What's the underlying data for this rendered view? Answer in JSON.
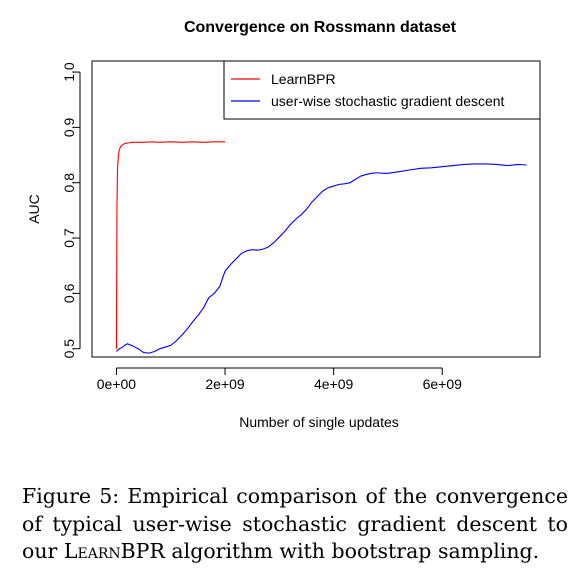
{
  "chart_data": {
    "type": "line",
    "title": "Convergence on Rossmann dataset",
    "xlabel": "Number of single updates",
    "ylabel": "AUC",
    "xlim": [
      -450000000.0,
      7800000000.0
    ],
    "ylim": [
      0.485,
      1.02
    ],
    "xticks": [
      0,
      2000000000,
      4000000000,
      6000000000
    ],
    "xtick_labels": [
      "0e+00",
      "2e+09",
      "4e+09",
      "6e+09"
    ],
    "yticks": [
      0.5,
      0.6,
      0.7,
      0.8,
      0.9,
      1.0
    ],
    "ytick_labels": [
      "0.5",
      "0.6",
      "0.7",
      "0.8",
      "0.9",
      "1.0"
    ],
    "grid": false,
    "legend_position": "top-right",
    "series": [
      {
        "name": "LearnBPR",
        "color": "#ff0000",
        "x": [
          0,
          10000000,
          20000000,
          35000000,
          50000000,
          70000000,
          90000000,
          120000000,
          160000000,
          220000000,
          300000000,
          400000000,
          500000000,
          650000000,
          800000000,
          1000000000,
          1200000000,
          1400000000,
          1600000000,
          1800000000,
          2000000000
        ],
        "y": [
          0.5,
          0.76,
          0.825,
          0.848,
          0.858,
          0.864,
          0.867,
          0.869,
          0.871,
          0.872,
          0.873,
          0.873,
          0.873,
          0.874,
          0.873,
          0.874,
          0.873,
          0.874,
          0.873,
          0.874,
          0.874
        ]
      },
      {
        "name": "user-wise stochastic gradient descent",
        "color": "#0000ff",
        "x": [
          0,
          50000000,
          100000000,
          150000000,
          200000000,
          300000000,
          400000000,
          500000000,
          600000000,
          700000000,
          800000000,
          900000000,
          1000000000,
          1100000000,
          1200000000,
          1300000000,
          1400000000,
          1500000000,
          1600000000,
          1700000000,
          1800000000,
          1900000000,
          2000000000,
          2100000000,
          2200000000,
          2300000000,
          2400000000,
          2500000000,
          2600000000,
          2700000000,
          2800000000,
          2900000000,
          3000000000,
          3100000000,
          3200000000,
          3300000000,
          3400000000,
          3500000000,
          3600000000,
          3700000000,
          3800000000,
          3900000000,
          4000000000,
          4100000000,
          4200000000,
          4300000000,
          4400000000,
          4500000000,
          4600000000,
          4700000000,
          4800000000,
          4900000000,
          5000000000,
          5200000000,
          5400000000,
          5600000000,
          5800000000,
          6000000000,
          6200000000,
          6400000000,
          6600000000,
          6800000000,
          7000000000,
          7200000000,
          7400000000,
          7550000000
        ],
        "y": [
          0.495,
          0.5,
          0.502,
          0.506,
          0.509,
          0.505,
          0.5,
          0.493,
          0.492,
          0.495,
          0.5,
          0.503,
          0.506,
          0.514,
          0.524,
          0.535,
          0.548,
          0.56,
          0.573,
          0.592,
          0.6,
          0.612,
          0.64,
          0.652,
          0.662,
          0.672,
          0.677,
          0.679,
          0.678,
          0.68,
          0.684,
          0.692,
          0.702,
          0.712,
          0.724,
          0.734,
          0.742,
          0.752,
          0.765,
          0.775,
          0.785,
          0.791,
          0.794,
          0.797,
          0.798,
          0.8,
          0.806,
          0.812,
          0.815,
          0.817,
          0.818,
          0.817,
          0.817,
          0.82,
          0.823,
          0.826,
          0.827,
          0.829,
          0.831,
          0.833,
          0.834,
          0.834,
          0.833,
          0.831,
          0.833,
          0.832
        ]
      }
    ]
  },
  "caption": {
    "prefix": "Figure 5:  Empirical comparison of the convergence of typical user-wise stochastic gradient descent to our ",
    "small_caps_word": "LearnBPR",
    "suffix": " algorithm with bootstrap sampling."
  }
}
